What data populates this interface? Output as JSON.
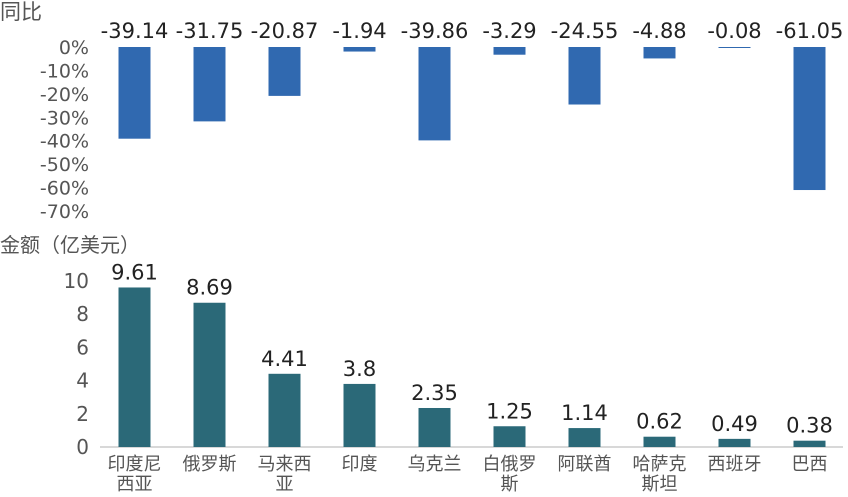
{
  "chart_data": [
    {
      "type": "bar",
      "ylabel": "同比",
      "categories": [
        "印度尼西亚",
        "俄罗斯",
        "马来西亚",
        "印度",
        "乌克兰",
        "白俄罗斯",
        "阿联酋",
        "哈萨克斯坦",
        "西班牙",
        "巴西"
      ],
      "values": [
        -39.14,
        -31.75,
        -20.87,
        -1.94,
        -39.86,
        -3.29,
        -24.55,
        -4.88,
        -0.08,
        -61.05
      ],
      "data_labels": [
        "-39.14",
        "-31.75",
        "-20.87",
        "-1.94",
        "-39.86",
        "-3.29",
        "-24.55",
        "-4.88",
        "-0.08",
        "-61.05"
      ],
      "ylim": [
        -70,
        0
      ],
      "yticks": [
        "0%",
        "-10%",
        "-20%",
        "-30%",
        "-40%",
        "-50%",
        "-60%",
        "-70%"
      ],
      "color": "#3069b0",
      "grid": false
    },
    {
      "type": "bar",
      "ylabel": "金额（亿美元）",
      "categories": [
        "印度尼西亚",
        "俄罗斯",
        "马来西亚",
        "印度",
        "乌克兰",
        "白俄罗斯",
        "阿联酋",
        "哈萨克斯坦",
        "西班牙",
        "巴西"
      ],
      "category_lines": [
        [
          "印度尼",
          "西亚"
        ],
        [
          "俄罗斯"
        ],
        [
          "马来西",
          "亚"
        ],
        [
          "印度"
        ],
        [
          "乌克兰"
        ],
        [
          "白俄罗",
          "斯"
        ],
        [
          "阿联酋"
        ],
        [
          "哈萨克",
          "斯坦"
        ],
        [
          "西班牙"
        ],
        [
          "巴西"
        ]
      ],
      "values": [
        9.61,
        8.69,
        4.41,
        3.8,
        2.35,
        1.25,
        1.14,
        0.62,
        0.49,
        0.38
      ],
      "data_labels": [
        "9.61",
        "8.69",
        "4.41",
        "3.8",
        "2.35",
        "1.25",
        "1.14",
        "0.62",
        "0.49",
        "0.38"
      ],
      "ylim": [
        0,
        10
      ],
      "yticks": [
        "0",
        "2",
        "4",
        "6",
        "8",
        "10"
      ],
      "color": "#2b6978",
      "grid": false
    }
  ]
}
